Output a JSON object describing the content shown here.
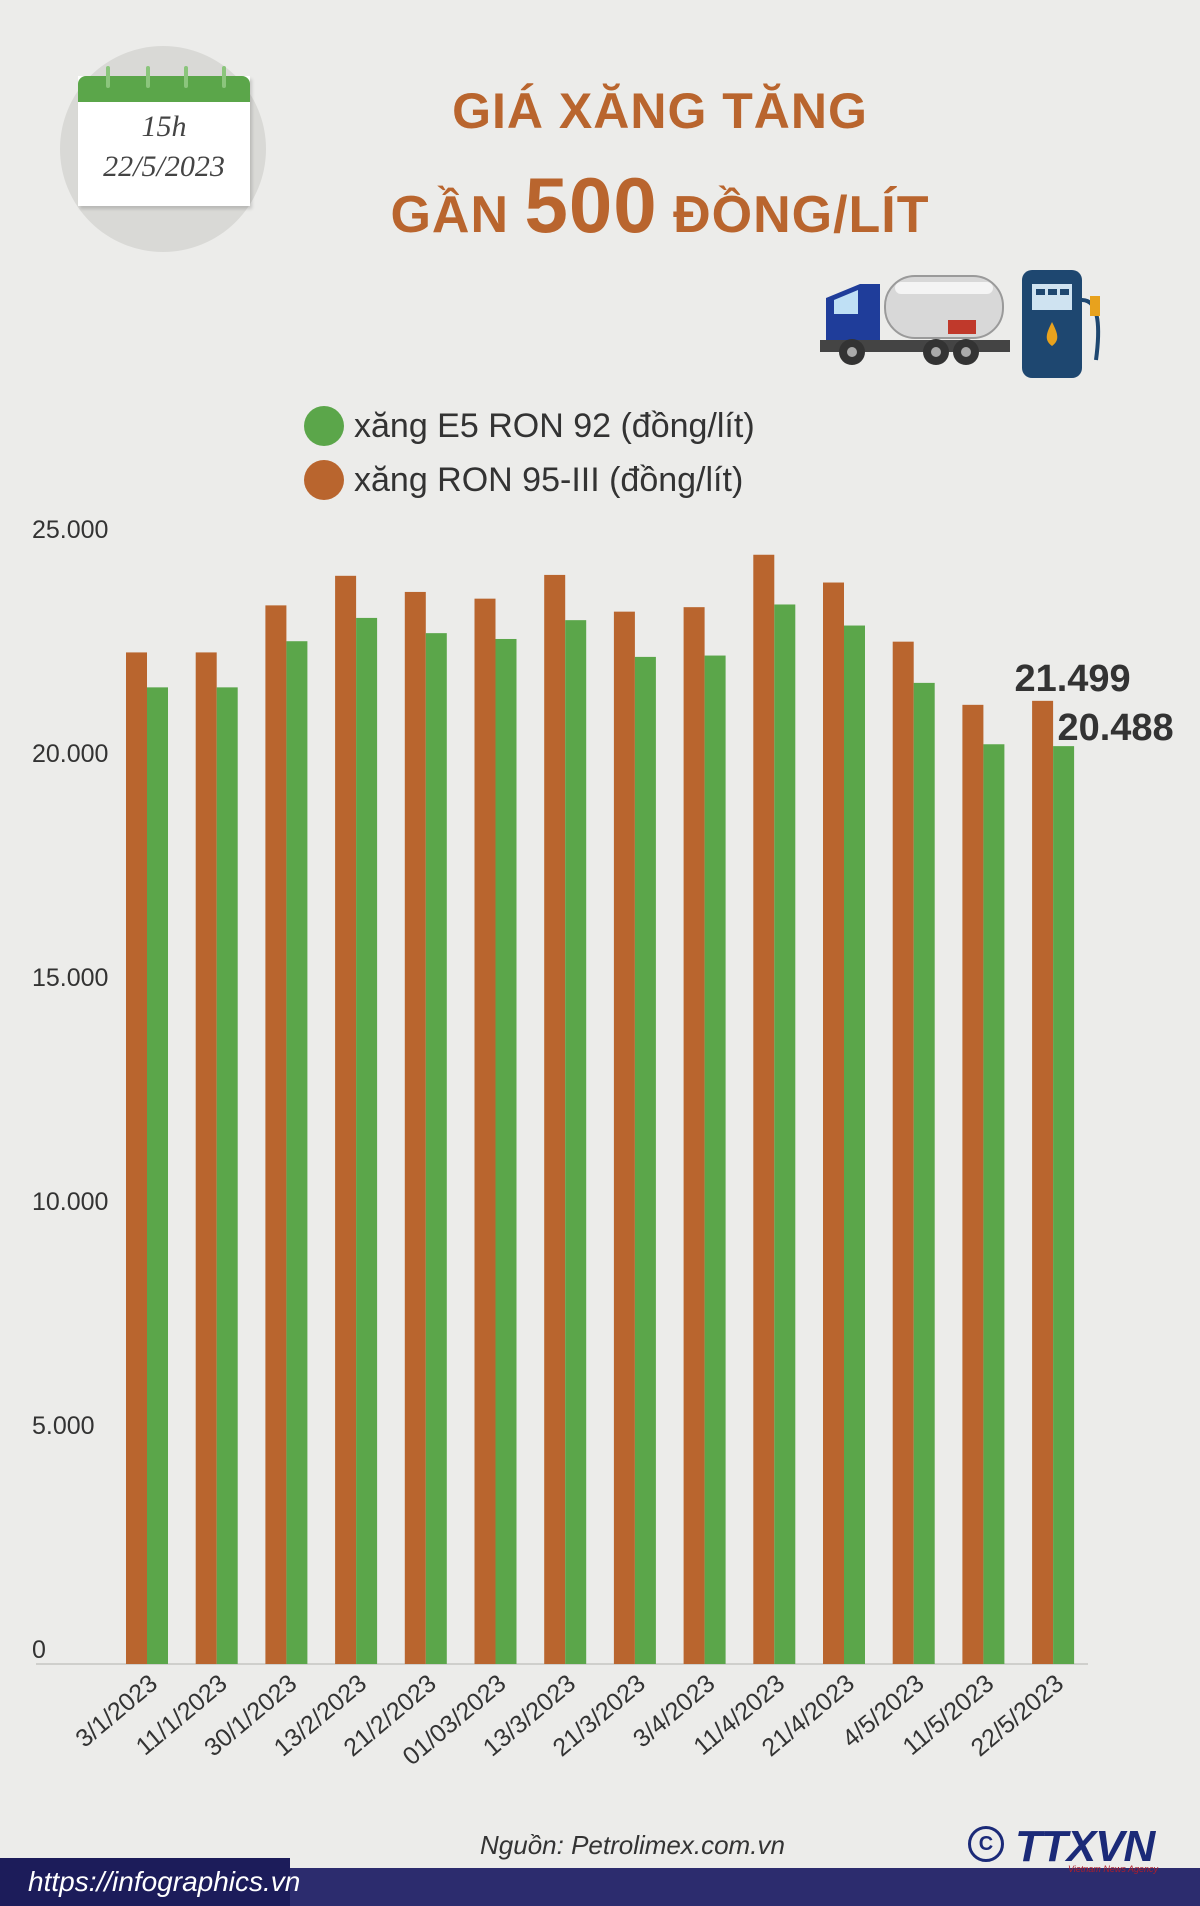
{
  "calendar": {
    "time": "15h",
    "date": "22/5/2023"
  },
  "header": {
    "title_line1": "GIÁ XĂNG TĂNG",
    "title_line2_a": "GẦN ",
    "title_line2_b": "500",
    "title_line2_c": " ĐỒNG/LÍT"
  },
  "icons": {
    "truck": "fuel-tanker-truck-icon",
    "pump": "fuel-pump-icon"
  },
  "colors": {
    "e5": "#5ba64a",
    "ron95": "#b9652e",
    "title": "#b9652e"
  },
  "chart_data": {
    "type": "bar",
    "title": "",
    "xlabel": "",
    "ylabel": "",
    "categories": [
      "3/1/2023",
      "11/1/2023",
      "30/1/2023",
      "13/2/2023",
      "21/2/2023",
      "01/03/2023",
      "13/3/2023",
      "21/3/2023",
      "3/4/2023",
      "11/4/2023",
      "21/4/2023",
      "4/5/2023",
      "11/5/2023",
      "22/5/2023"
    ],
    "series": [
      {
        "name": "xăng RON 95-III (đồng/lít)",
        "values": [
          22580,
          22580,
          23630,
          24290,
          23930,
          23780,
          24310,
          23490,
          23590,
          24760,
          24140,
          22820,
          21410,
          21499
        ]
      },
      {
        "name": "xăng E5 RON 92 (đồng/lít)",
        "values": [
          21800,
          21800,
          22830,
          23350,
          23010,
          22880,
          23300,
          22480,
          22510,
          23650,
          23180,
          21900,
          20530,
          20488
        ]
      }
    ],
    "ylim": [
      0,
      25000
    ],
    "yticks": [
      "0",
      "5.000",
      "10.000",
      "15.000",
      "20.000",
      "25.000"
    ],
    "data_labels": {
      "ron95_last": "21.499",
      "e5_last": "20.488"
    },
    "legend": "top-left",
    "grid": false
  },
  "footer": {
    "source": "Nguồn: Petrolimex.com.vn",
    "url": "https://infographics.vn",
    "logo": "TTXVN",
    "logo_sub": "Vietnam News Agency",
    "copyright": "C"
  }
}
